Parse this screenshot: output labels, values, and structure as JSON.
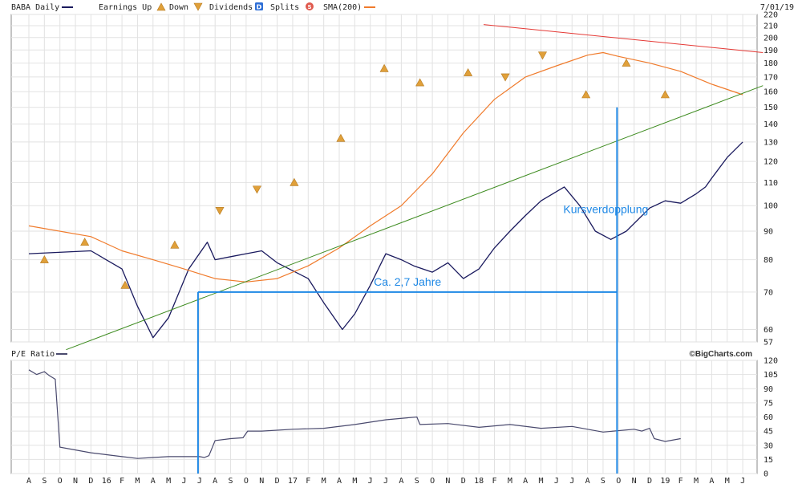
{
  "chart_data": [
    {
      "type": "line",
      "panel": "price",
      "title": "BABA Daily",
      "date": "7/01/19",
      "legend": {
        "earnings_up": "Earnings Up",
        "down": "Down",
        "dividends": "Dividends",
        "dividends_badge": "D",
        "splits": "Splits",
        "splits_badge": "S",
        "sma": "SMA(200)"
      },
      "y_scale": "log",
      "ylim": [
        57,
        220
      ],
      "y_ticks": [
        57,
        60,
        70,
        80,
        90,
        100,
        110,
        120,
        130,
        140,
        150,
        160,
        170,
        180,
        190,
        200,
        210,
        220
      ],
      "x_ticks": [
        "A",
        "S",
        "O",
        "N",
        "D",
        "16",
        "F",
        "M",
        "A",
        "M",
        "J",
        "J",
        "A",
        "S",
        "O",
        "N",
        "D",
        "17",
        "F",
        "M",
        "A",
        "M",
        "J",
        "J",
        "A",
        "S",
        "O",
        "N",
        "D",
        "18",
        "F",
        "M",
        "A",
        "M",
        "J",
        "J",
        "A",
        "S",
        "O",
        "N",
        "D",
        "19",
        "F",
        "M",
        "A",
        "M",
        "J"
      ],
      "grid": true,
      "series": [
        {
          "name": "BABA Daily",
          "color": "#1a1a5e",
          "x": [
            0,
            4,
            6,
            7,
            8,
            9,
            10.3,
            11.5,
            12,
            13,
            14,
            15,
            16,
            18,
            19,
            20.2,
            21,
            22,
            23,
            24,
            24.8,
            26,
            27,
            28,
            29,
            30,
            31,
            32,
            33,
            34.5,
            35.5,
            36.5,
            37.5,
            38.5,
            40,
            41,
            42,
            43,
            43.6,
            44,
            45,
            46
          ],
          "values": [
            82,
            83,
            77,
            66,
            58,
            63,
            77,
            86,
            80,
            81,
            82,
            83,
            79,
            74,
            67,
            60,
            64,
            72,
            82,
            80,
            78,
            76,
            79,
            74,
            77,
            84,
            90,
            96,
            102,
            108,
            100,
            90,
            87,
            90,
            99,
            102,
            101,
            105,
            108,
            112,
            122,
            130
          ]
        },
        {
          "name": "SMA(200)",
          "color": "#f07b2c",
          "x": [
            0,
            4,
            6,
            8,
            10,
            12,
            14,
            16,
            18,
            20,
            22,
            24,
            26,
            28,
            30,
            32,
            34,
            36,
            37,
            38,
            40,
            42,
            44,
            46
          ],
          "values": [
            92,
            88,
            83,
            80,
            77,
            74,
            73,
            74,
            78,
            84,
            92,
            100,
            114,
            135,
            155,
            170,
            178,
            186,
            188,
            185,
            180,
            174,
            165,
            158
          ]
        },
        {
          "name": "Trendline",
          "color": "#3d8b1f",
          "x": [
            2.4,
            47.3
          ],
          "values": [
            55.2,
            164
          ]
        },
        {
          "name": "Resistance",
          "color": "#e53935",
          "x": [
            29.3,
            47.3
          ],
          "values": [
            211,
            188
          ]
        }
      ],
      "earnings_markers": [
        {
          "x": 1.0,
          "value": 80,
          "dir": "up"
        },
        {
          "x": 3.6,
          "value": 86,
          "dir": "up"
        },
        {
          "x": 6.2,
          "value": 72,
          "dir": "up"
        },
        {
          "x": 9.4,
          "value": 85,
          "dir": "up"
        },
        {
          "x": 12.3,
          "value": 98,
          "dir": "down"
        },
        {
          "x": 14.7,
          "value": 107,
          "dir": "down"
        },
        {
          "x": 17.1,
          "value": 110,
          "dir": "up"
        },
        {
          "x": 20.1,
          "value": 132,
          "dir": "up"
        },
        {
          "x": 22.9,
          "value": 176,
          "dir": "up"
        },
        {
          "x": 25.2,
          "value": 166,
          "dir": "up"
        },
        {
          "x": 28.3,
          "value": 173,
          "dir": "up"
        },
        {
          "x": 30.7,
          "value": 170,
          "dir": "down"
        },
        {
          "x": 33.1,
          "value": 186,
          "dir": "down"
        },
        {
          "x": 35.9,
          "value": 158,
          "dir": "up"
        },
        {
          "x": 38.5,
          "value": 180,
          "dir": "up"
        },
        {
          "x": 41.0,
          "value": 158,
          "dir": "up"
        }
      ],
      "annotations": {
        "span_label": "Ca. 2,7 Jahre",
        "double_label": "Kursverdopplung",
        "span_start_x": 10.9,
        "span_end_x": 37.9,
        "span_level": 70
      },
      "credit": "©BigCharts.com"
    },
    {
      "type": "line",
      "panel": "pe",
      "title": "P/E Ratio",
      "ylim": [
        0,
        120
      ],
      "y_ticks": [
        0,
        15,
        30,
        45,
        60,
        75,
        90,
        105,
        120
      ],
      "grid": true,
      "series": [
        {
          "name": "P/E Ratio",
          "color": "#4a4a6e",
          "x": [
            0,
            0.5,
            1,
            1.3,
            1.7,
            2,
            3,
            4,
            5,
            6,
            7,
            8,
            9,
            10,
            11,
            11.3,
            11.6,
            12,
            13,
            13.8,
            14.1,
            15,
            17,
            19,
            21,
            23,
            25,
            25.2,
            27,
            29,
            31,
            33,
            35,
            37,
            39,
            39.5,
            40,
            40.3,
            41,
            42
          ],
          "values": [
            110,
            105,
            108,
            104,
            100,
            28,
            25,
            22,
            20,
            18,
            16,
            17,
            18,
            18,
            18,
            17,
            19,
            35,
            37,
            38,
            45,
            45,
            47,
            48,
            52,
            57,
            60,
            52,
            53,
            49,
            52,
            48,
            50,
            44,
            47,
            45,
            48,
            37,
            34,
            37
          ]
        }
      ]
    }
  ]
}
